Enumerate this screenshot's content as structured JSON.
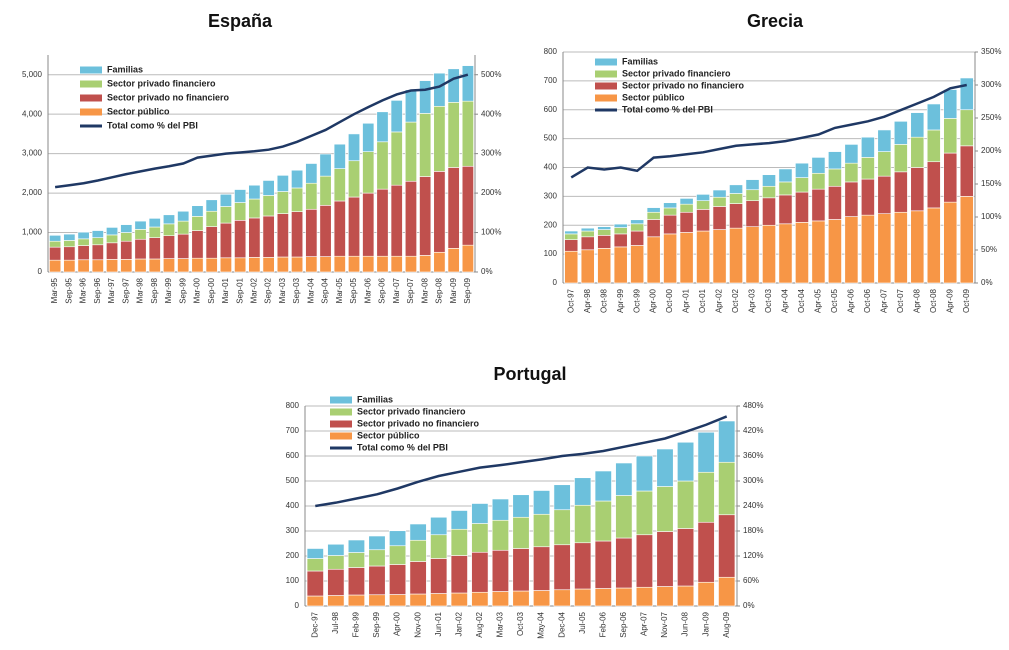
{
  "chart_data": [
    {
      "type": "bar",
      "stacked": true,
      "title": "España",
      "grid": true,
      "categories": [
        "Mar-95",
        "Sep-95",
        "Mar-96",
        "Sep-96",
        "Mar-97",
        "Sep-97",
        "Mar-98",
        "Sep-98",
        "Mar-99",
        "Sep-99",
        "Mar-00",
        "Sep-00",
        "Mar-01",
        "Sep-01",
        "Mar-02",
        "Sep-02",
        "Mar-03",
        "Sep-03",
        "Mar-04",
        "Sep-04",
        "Mar-05",
        "Sep-05",
        "Mar-06",
        "Sep-06",
        "Mar-07",
        "Sep-07",
        "Mar-08",
        "Sep-08",
        "Mar-09",
        "Sep-09"
      ],
      "ylim": [
        0,
        5500
      ],
      "yticks": [
        0,
        {
          "value": 1000,
          "label": "1,000"
        },
        {
          "value": 2000,
          "label": "2,000"
        },
        {
          "value": 3000,
          "label": "3,000"
        },
        {
          "value": 4000,
          "label": "4,000"
        },
        {
          "value": 5000,
          "label": "5,000"
        }
      ],
      "y2lim": [
        0,
        550
      ],
      "y2ticks": [
        {
          "value": 0,
          "label": "0%"
        },
        {
          "value": 100,
          "label": "100%"
        },
        {
          "value": 200,
          "label": "200%"
        },
        {
          "value": 300,
          "label": "300%"
        },
        {
          "value": 400,
          "label": "400%"
        },
        {
          "value": 500,
          "label": "500%"
        }
      ],
      "series": [
        {
          "name": "Familias",
          "type": "bar",
          "color": "#6cc0dc",
          "values": [
            150,
            160,
            170,
            180,
            190,
            200,
            210,
            220,
            230,
            250,
            270,
            290,
            310,
            330,
            350,
            380,
            410,
            450,
            500,
            560,
            620,
            680,
            720,
            760,
            800,
            820,
            830,
            840,
            850,
            900
          ]
        },
        {
          "name": "Sector privado financiero",
          "type": "bar",
          "color": "#a9cf72",
          "values": [
            150,
            160,
            170,
            180,
            200,
            220,
            250,
            270,
            300,
            330,
            360,
            390,
            420,
            450,
            480,
            520,
            560,
            600,
            660,
            740,
            820,
            920,
            1050,
            1200,
            1350,
            1500,
            1600,
            1650,
            1650,
            1650
          ]
        },
        {
          "name": "Sector privado no financiero",
          "type": "bar",
          "color": "#c0504d",
          "values": [
            330,
            340,
            360,
            380,
            420,
            460,
            500,
            540,
            580,
            620,
            700,
            800,
            880,
            950,
            1000,
            1050,
            1100,
            1150,
            1200,
            1300,
            1400,
            1500,
            1600,
            1700,
            1800,
            1900,
            2000,
            2050,
            2050,
            2000
          ]
        },
        {
          "name": "Sector público",
          "type": "bar",
          "color": "#f79646",
          "values": [
            300,
            300,
            310,
            310,
            320,
            320,
            330,
            330,
            340,
            340,
            350,
            350,
            360,
            360,
            370,
            370,
            380,
            380,
            390,
            390,
            400,
            400,
            400,
            400,
            400,
            400,
            420,
            500,
            600,
            680
          ]
        },
        {
          "name": "Total como % del PBI",
          "type": "line",
          "axis": "y2",
          "color": "#1f3864",
          "values": [
            215,
            220,
            225,
            232,
            240,
            248,
            255,
            262,
            268,
            275,
            290,
            295,
            300,
            303,
            306,
            310,
            318,
            330,
            345,
            360,
            380,
            400,
            418,
            435,
            450,
            460,
            462,
            470,
            490,
            500
          ]
        }
      ]
    },
    {
      "type": "bar",
      "stacked": true,
      "title": "Grecia",
      "grid": true,
      "categories": [
        "Oct-97",
        "Apr-98",
        "Oct-98",
        "Apr-99",
        "Oct-99",
        "Apr-00",
        "Oct-00",
        "Apr-01",
        "Oct-01",
        "Apr-02",
        "Oct-02",
        "Apr-03",
        "Oct-03",
        "Apr-04",
        "Oct-04",
        "Apr-05",
        "Oct-05",
        "Apr-06",
        "Oct-06",
        "Apr-07",
        "Oct-07",
        "Apr-08",
        "Oct-08",
        "Apr-09",
        "Oct-09"
      ],
      "ylim": [
        0,
        800
      ],
      "yticks": [
        0,
        100,
        200,
        300,
        400,
        500,
        600,
        700,
        800
      ],
      "y2lim": [
        0,
        350
      ],
      "y2ticks": [
        {
          "value": 0,
          "label": "0%"
        },
        {
          "value": 50,
          "label": "50%"
        },
        {
          "value": 100,
          "label": "100%"
        },
        {
          "value": 150,
          "label": "150%"
        },
        {
          "value": 200,
          "label": "200%"
        },
        {
          "value": 250,
          "label": "250%"
        },
        {
          "value": 300,
          "label": "300%"
        },
        {
          "value": 350,
          "label": "350%"
        }
      ],
      "series": [
        {
          "name": "Familias",
          "type": "bar",
          "color": "#6cc0dc",
          "values": [
            10,
            10,
            10,
            12,
            14,
            16,
            18,
            20,
            22,
            25,
            30,
            35,
            40,
            45,
            50,
            55,
            60,
            65,
            70,
            75,
            80,
            85,
            90,
            100,
            110
          ]
        },
        {
          "name": "Sector privado financiero",
          "type": "bar",
          "color": "#a9cf72",
          "values": [
            20,
            20,
            20,
            22,
            25,
            25,
            25,
            28,
            30,
            32,
            35,
            38,
            40,
            45,
            50,
            55,
            60,
            65,
            75,
            85,
            95,
            105,
            110,
            120,
            125
          ]
        },
        {
          "name": "Sector privado no financiero",
          "type": "bar",
          "color": "#c0504d",
          "values": [
            40,
            45,
            45,
            45,
            50,
            60,
            65,
            70,
            75,
            80,
            85,
            90,
            95,
            100,
            105,
            110,
            115,
            120,
            125,
            130,
            140,
            150,
            160,
            170,
            175
          ]
        },
        {
          "name": "Sector público",
          "type": "bar",
          "color": "#f79646",
          "values": [
            110,
            115,
            120,
            125,
            130,
            160,
            170,
            175,
            180,
            185,
            190,
            195,
            200,
            205,
            210,
            215,
            220,
            230,
            235,
            240,
            245,
            250,
            260,
            280,
            300
          ]
        },
        {
          "name": "Total como % del PBI",
          "type": "line",
          "axis": "y2",
          "color": "#1f3864",
          "values": [
            160,
            175,
            172,
            175,
            170,
            190,
            192,
            195,
            198,
            203,
            208,
            210,
            212,
            215,
            220,
            225,
            235,
            240,
            245,
            252,
            262,
            272,
            282,
            295,
            300
          ]
        }
      ]
    },
    {
      "type": "bar",
      "stacked": true,
      "title": "Portugal",
      "grid": true,
      "categories": [
        "Dec-97",
        "Jul-98",
        "Feb-99",
        "Sep-99",
        "Apr-00",
        "Nov-00",
        "Jun-01",
        "Jan-02",
        "Aug-02",
        "Mar-03",
        "Oct-03",
        "May-04",
        "Dec-04",
        "Jul-05",
        "Feb-06",
        "Sep-06",
        "Apr-07",
        "Nov-07",
        "Jun-08",
        "Jan-09",
        "Aug-09"
      ],
      "ylim": [
        0,
        800
      ],
      "yticks": [
        0,
        100,
        200,
        300,
        400,
        500,
        600,
        700,
        800
      ],
      "y2lim": [
        0,
        480
      ],
      "y2ticks": [
        {
          "value": 0,
          "label": "0%"
        },
        {
          "value": 60,
          "label": "60%"
        },
        {
          "value": 120,
          "label": "120%"
        },
        {
          "value": 180,
          "label": "180%"
        },
        {
          "value": 240,
          "label": "240%"
        },
        {
          "value": 300,
          "label": "300%"
        },
        {
          "value": 360,
          "label": "360%"
        },
        {
          "value": 420,
          "label": "420%"
        },
        {
          "value": 480,
          "label": "480%"
        }
      ],
      "series": [
        {
          "name": "Familias",
          "type": "bar",
          "color": "#6cc0dc",
          "values": [
            40,
            45,
            50,
            55,
            60,
            65,
            70,
            75,
            80,
            85,
            90,
            95,
            100,
            110,
            120,
            130,
            140,
            150,
            155,
            160,
            165
          ]
        },
        {
          "name": "Sector privado financiero",
          "type": "bar",
          "color": "#a9cf72",
          "values": [
            50,
            55,
            60,
            65,
            75,
            85,
            95,
            105,
            115,
            120,
            125,
            130,
            140,
            150,
            160,
            170,
            175,
            180,
            190,
            200,
            210
          ]
        },
        {
          "name": "Sector privado no financiero",
          "type": "bar",
          "color": "#c0504d",
          "values": [
            100,
            105,
            110,
            115,
            120,
            130,
            140,
            150,
            160,
            165,
            170,
            175,
            180,
            185,
            190,
            200,
            210,
            220,
            230,
            240,
            250
          ]
        },
        {
          "name": "Sector público",
          "type": "bar",
          "color": "#f79646",
          "values": [
            40,
            42,
            44,
            45,
            46,
            48,
            50,
            52,
            55,
            58,
            60,
            62,
            65,
            68,
            70,
            72,
            75,
            78,
            80,
            95,
            115
          ]
        },
        {
          "name": "Total como % del PBI",
          "type": "line",
          "axis": "y2",
          "color": "#1f3864",
          "values": [
            240,
            248,
            258,
            268,
            282,
            298,
            312,
            322,
            332,
            338,
            345,
            352,
            360,
            365,
            372,
            382,
            392,
            402,
            418,
            435,
            455
          ]
        }
      ]
    }
  ]
}
